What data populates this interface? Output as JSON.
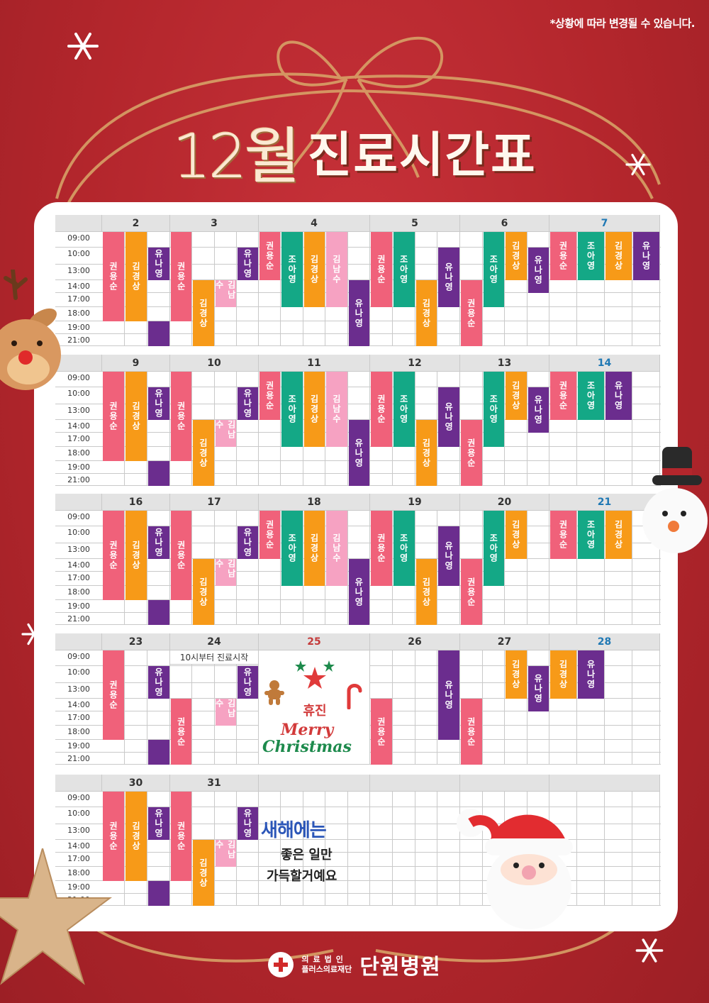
{
  "notice": "*상황에 따라 변경될 수 있습니다.",
  "title": {
    "month": "12월",
    "text": "진료시간표"
  },
  "times": [
    "09:00",
    "10:00",
    "13:00",
    "14:00",
    "17:00",
    "18:00",
    "19:00",
    "21:00"
  ],
  "weeks": [
    {
      "days": [
        {
          "label": "2",
          "type": "normal",
          "blocks": [
            {
              "col": 0,
              "start": 0,
              "end": 6,
              "doc": "권용순",
              "c": "kwon"
            },
            {
              "col": 1,
              "start": 0,
              "end": 6,
              "doc": "김경상",
              "c": "kim"
            },
            {
              "col": 2,
              "start": 1,
              "end": 3,
              "doc": "유나영",
              "c": "yu"
            },
            {
              "col": 2,
              "start": 6,
              "end": 8,
              "doc": "",
              "c": "yu"
            }
          ]
        },
        {
          "label": "3",
          "type": "normal",
          "blocks": [
            {
              "col": 0,
              "start": 0,
              "end": 6,
              "doc": "권용순",
              "c": "kwon"
            },
            {
              "col": 3,
              "start": 1,
              "end": 3,
              "doc": "유나영",
              "c": "yu"
            },
            {
              "col": 1,
              "start": 3,
              "end": 8,
              "doc": "김경상",
              "c": "kim"
            },
            {
              "col": 2,
              "start": 3,
              "end": 5,
              "doc": "김남수",
              "c": "kn"
            }
          ]
        },
        {
          "label": "4",
          "type": "normal",
          "blocks": [
            {
              "col": 0,
              "start": 0,
              "end": 3,
              "doc": "권용순",
              "c": "kwon"
            },
            {
              "col": 1,
              "start": 0,
              "end": 5,
              "doc": "조아영",
              "c": "jo"
            },
            {
              "col": 2,
              "start": 0,
              "end": 5,
              "doc": "김경상",
              "c": "kim"
            },
            {
              "col": 3,
              "start": 0,
              "end": 5,
              "doc": "김남수",
              "c": "kn"
            },
            {
              "col": 4,
              "start": 3,
              "end": 8,
              "doc": "유나영",
              "c": "yu"
            }
          ]
        },
        {
          "label": "5",
          "type": "normal",
          "blocks": [
            {
              "col": 0,
              "start": 0,
              "end": 5,
              "doc": "권용순",
              "c": "kwon"
            },
            {
              "col": 1,
              "start": 0,
              "end": 5,
              "doc": "조아영",
              "c": "jo"
            },
            {
              "col": 3,
              "start": 1,
              "end": 5,
              "doc": "유나영",
              "c": "yu"
            },
            {
              "col": 2,
              "start": 3,
              "end": 8,
              "doc": "김경상",
              "c": "kim"
            }
          ]
        },
        {
          "label": "6",
          "type": "normal",
          "blocks": [
            {
              "col": 1,
              "start": 0,
              "end": 5,
              "doc": "조아영",
              "c": "jo"
            },
            {
              "col": 2,
              "start": 0,
              "end": 3,
              "doc": "김경상",
              "c": "kim"
            },
            {
              "col": 3,
              "start": 1,
              "end": 4,
              "doc": "유나영",
              "c": "yu"
            },
            {
              "col": 0,
              "start": 3,
              "end": 8,
              "doc": "권용순",
              "c": "kwon"
            }
          ]
        },
        {
          "label": "7",
          "type": "sat",
          "blocks": [
            {
              "col": 0,
              "start": 0,
              "end": 3,
              "doc": "권용순",
              "c": "kwon"
            },
            {
              "col": 1,
              "start": 0,
              "end": 3,
              "doc": "조아영",
              "c": "jo"
            },
            {
              "col": 2,
              "start": 0,
              "end": 3,
              "doc": "김경상",
              "c": "kim"
            },
            {
              "col": 3,
              "start": 0,
              "end": 3,
              "doc": "유나영",
              "c": "yu"
            }
          ]
        }
      ]
    },
    {
      "days": [
        {
          "label": "9",
          "type": "normal",
          "blocks": [
            {
              "col": 0,
              "start": 0,
              "end": 6,
              "doc": "권용순",
              "c": "kwon"
            },
            {
              "col": 1,
              "start": 0,
              "end": 6,
              "doc": "김경상",
              "c": "kim"
            },
            {
              "col": 2,
              "start": 1,
              "end": 3,
              "doc": "유나영",
              "c": "yu"
            },
            {
              "col": 2,
              "start": 6,
              "end": 8,
              "doc": "",
              "c": "yu"
            }
          ]
        },
        {
          "label": "10",
          "type": "normal",
          "blocks": [
            {
              "col": 0,
              "start": 0,
              "end": 6,
              "doc": "권용순",
              "c": "kwon"
            },
            {
              "col": 3,
              "start": 1,
              "end": 3,
              "doc": "유나영",
              "c": "yu"
            },
            {
              "col": 1,
              "start": 3,
              "end": 8,
              "doc": "김경상",
              "c": "kim"
            },
            {
              "col": 2,
              "start": 3,
              "end": 5,
              "doc": "김남수",
              "c": "kn"
            }
          ]
        },
        {
          "label": "11",
          "type": "normal",
          "blocks": [
            {
              "col": 0,
              "start": 0,
              "end": 3,
              "doc": "권용순",
              "c": "kwon"
            },
            {
              "col": 1,
              "start": 0,
              "end": 5,
              "doc": "조아영",
              "c": "jo"
            },
            {
              "col": 2,
              "start": 0,
              "end": 5,
              "doc": "김경상",
              "c": "kim"
            },
            {
              "col": 3,
              "start": 0,
              "end": 5,
              "doc": "김남수",
              "c": "kn"
            },
            {
              "col": 4,
              "start": 3,
              "end": 8,
              "doc": "유나영",
              "c": "yu"
            }
          ]
        },
        {
          "label": "12",
          "type": "normal",
          "blocks": [
            {
              "col": 0,
              "start": 0,
              "end": 5,
              "doc": "권용순",
              "c": "kwon"
            },
            {
              "col": 1,
              "start": 0,
              "end": 5,
              "doc": "조아영",
              "c": "jo"
            },
            {
              "col": 3,
              "start": 1,
              "end": 5,
              "doc": "유나영",
              "c": "yu"
            },
            {
              "col": 2,
              "start": 3,
              "end": 8,
              "doc": "김경상",
              "c": "kim"
            }
          ]
        },
        {
          "label": "13",
          "type": "normal",
          "blocks": [
            {
              "col": 1,
              "start": 0,
              "end": 5,
              "doc": "조아영",
              "c": "jo"
            },
            {
              "col": 2,
              "start": 0,
              "end": 3,
              "doc": "김경상",
              "c": "kim"
            },
            {
              "col": 3,
              "start": 1,
              "end": 4,
              "doc": "유나영",
              "c": "yu"
            },
            {
              "col": 0,
              "start": 3,
              "end": 8,
              "doc": "권용순",
              "c": "kwon"
            }
          ]
        },
        {
          "label": "14",
          "type": "sat",
          "blocks": [
            {
              "col": 0,
              "start": 0,
              "end": 3,
              "doc": "권용순",
              "c": "kwon"
            },
            {
              "col": 1,
              "start": 0,
              "end": 3,
              "doc": "조아영",
              "c": "jo"
            },
            {
              "col": 2,
              "start": 0,
              "end": 3,
              "doc": "유나영",
              "c": "yu"
            }
          ]
        }
      ]
    },
    {
      "days": [
        {
          "label": "16",
          "type": "normal",
          "blocks": [
            {
              "col": 0,
              "start": 0,
              "end": 6,
              "doc": "권용순",
              "c": "kwon"
            },
            {
              "col": 1,
              "start": 0,
              "end": 6,
              "doc": "김경상",
              "c": "kim"
            },
            {
              "col": 2,
              "start": 1,
              "end": 3,
              "doc": "유나영",
              "c": "yu"
            },
            {
              "col": 2,
              "start": 6,
              "end": 8,
              "doc": "",
              "c": "yu"
            }
          ]
        },
        {
          "label": "17",
          "type": "normal",
          "blocks": [
            {
              "col": 0,
              "start": 0,
              "end": 6,
              "doc": "권용순",
              "c": "kwon"
            },
            {
              "col": 3,
              "start": 1,
              "end": 3,
              "doc": "유나영",
              "c": "yu"
            },
            {
              "col": 1,
              "start": 3,
              "end": 8,
              "doc": "김경상",
              "c": "kim"
            },
            {
              "col": 2,
              "start": 3,
              "end": 5,
              "doc": "김남수",
              "c": "kn"
            }
          ]
        },
        {
          "label": "18",
          "type": "normal",
          "blocks": [
            {
              "col": 0,
              "start": 0,
              "end": 3,
              "doc": "권용순",
              "c": "kwon"
            },
            {
              "col": 1,
              "start": 0,
              "end": 5,
              "doc": "조아영",
              "c": "jo"
            },
            {
              "col": 2,
              "start": 0,
              "end": 5,
              "doc": "김경상",
              "c": "kim"
            },
            {
              "col": 3,
              "start": 0,
              "end": 5,
              "doc": "김남수",
              "c": "kn"
            },
            {
              "col": 4,
              "start": 3,
              "end": 8,
              "doc": "유나영",
              "c": "yu"
            }
          ]
        },
        {
          "label": "19",
          "type": "normal",
          "blocks": [
            {
              "col": 0,
              "start": 0,
              "end": 5,
              "doc": "권용순",
              "c": "kwon"
            },
            {
              "col": 1,
              "start": 0,
              "end": 5,
              "doc": "조아영",
              "c": "jo"
            },
            {
              "col": 3,
              "start": 1,
              "end": 5,
              "doc": "유나영",
              "c": "yu"
            },
            {
              "col": 2,
              "start": 3,
              "end": 8,
              "doc": "김경상",
              "c": "kim"
            }
          ]
        },
        {
          "label": "20",
          "type": "normal",
          "blocks": [
            {
              "col": 1,
              "start": 0,
              "end": 5,
              "doc": "조아영",
              "c": "jo"
            },
            {
              "col": 2,
              "start": 0,
              "end": 3,
              "doc": "김경상",
              "c": "kim"
            },
            {
              "col": 0,
              "start": 3,
              "end": 8,
              "doc": "권용순",
              "c": "kwon"
            }
          ]
        },
        {
          "label": "21",
          "type": "sat",
          "blocks": [
            {
              "col": 0,
              "start": 0,
              "end": 3,
              "doc": "권용순",
              "c": "kwon"
            },
            {
              "col": 1,
              "start": 0,
              "end": 3,
              "doc": "조아영",
              "c": "jo"
            },
            {
              "col": 2,
              "start": 0,
              "end": 3,
              "doc": "김경상",
              "c": "kim"
            }
          ]
        }
      ]
    },
    {
      "days": [
        {
          "label": "23",
          "type": "normal",
          "blocks": [
            {
              "col": 0,
              "start": 0,
              "end": 6,
              "doc": "권용순",
              "c": "kwon"
            },
            {
              "col": 2,
              "start": 1,
              "end": 3,
              "doc": "유나영",
              "c": "yu"
            },
            {
              "col": 2,
              "start": 6,
              "end": 8,
              "doc": "",
              "c": "yu"
            }
          ]
        },
        {
          "label": "24",
          "type": "normal",
          "sub": "10시부터 진료시작",
          "blocks": [
            {
              "col": 3,
              "start": 1,
              "end": 3,
              "doc": "유나영",
              "c": "yu"
            },
            {
              "col": 0,
              "start": 3,
              "end": 8,
              "doc": "권용순",
              "c": "kwon"
            },
            {
              "col": 2,
              "start": 3,
              "end": 5,
              "doc": "김남수",
              "c": "kn"
            }
          ]
        },
        {
          "label": "25",
          "type": "hol",
          "holiday": "휴진",
          "blocks": []
        },
        {
          "label": "26",
          "type": "normal",
          "blocks": [
            {
              "col": 3,
              "start": 0,
              "end": 6,
              "doc": "유나영",
              "c": "yu"
            },
            {
              "col": 0,
              "start": 3,
              "end": 8,
              "doc": "권용순",
              "c": "kwon"
            }
          ]
        },
        {
          "label": "27",
          "type": "normal",
          "blocks": [
            {
              "col": 2,
              "start": 0,
              "end": 3,
              "doc": "김경상",
              "c": "kim"
            },
            {
              "col": 3,
              "start": 1,
              "end": 4,
              "doc": "유나영",
              "c": "yu"
            },
            {
              "col": 0,
              "start": 3,
              "end": 8,
              "doc": "권용순",
              "c": "kwon"
            }
          ]
        },
        {
          "label": "28",
          "type": "sat",
          "blocks": [
            {
              "col": 0,
              "start": 0,
              "end": 3,
              "doc": "김경상",
              "c": "kim"
            },
            {
              "col": 1,
              "start": 0,
              "end": 3,
              "doc": "유나영",
              "c": "yu"
            }
          ]
        }
      ]
    },
    {
      "days": [
        {
          "label": "30",
          "type": "normal",
          "blocks": [
            {
              "col": 0,
              "start": 0,
              "end": 6,
              "doc": "권용순",
              "c": "kwon"
            },
            {
              "col": 1,
              "start": 0,
              "end": 6,
              "doc": "김경상",
              "c": "kim"
            },
            {
              "col": 2,
              "start": 1,
              "end": 3,
              "doc": "유나영",
              "c": "yu"
            },
            {
              "col": 2,
              "start": 6,
              "end": 8,
              "doc": "",
              "c": "yu"
            }
          ]
        },
        {
          "label": "31",
          "type": "normal",
          "blocks": [
            {
              "col": 0,
              "start": 0,
              "end": 6,
              "doc": "권용순",
              "c": "kwon"
            },
            {
              "col": 3,
              "start": 1,
              "end": 3,
              "doc": "유나영",
              "c": "yu"
            },
            {
              "col": 1,
              "start": 3,
              "end": 8,
              "doc": "김경상",
              "c": "kim"
            },
            {
              "col": 2,
              "start": 3,
              "end": 5,
              "doc": "김남수",
              "c": "kn"
            }
          ]
        },
        {
          "label": "",
          "type": "blank",
          "blocks": []
        },
        {
          "label": "",
          "type": "blank",
          "blocks": []
        },
        {
          "label": "",
          "type": "blank",
          "blocks": []
        },
        {
          "label": "",
          "type": "blank",
          "blocks": []
        }
      ]
    }
  ],
  "christmas": {
    "line1": "Merry",
    "line2": "Christmas"
  },
  "newyear": {
    "line1": "새해에는",
    "line2": "좋은 일만",
    "line3": "가득할거예요"
  },
  "footer": {
    "org1": "의료법인",
    "org2": "플러스의료재단",
    "name": "단원병원"
  },
  "colors": {
    "kwon": "#f0617a",
    "kim": "#f79a18",
    "yu": "#6b2d8e",
    "jo": "#14a886",
    "kn": "#f6a2c2",
    "bg": "#b3262c"
  },
  "icons": [
    "snowflake-icon",
    "reindeer-icon",
    "snowman-icon",
    "santa-icon",
    "star-icon",
    "gingerbread-icon",
    "candy-cane-icon",
    "christmas-star-icon",
    "hospital-cross-icon"
  ]
}
